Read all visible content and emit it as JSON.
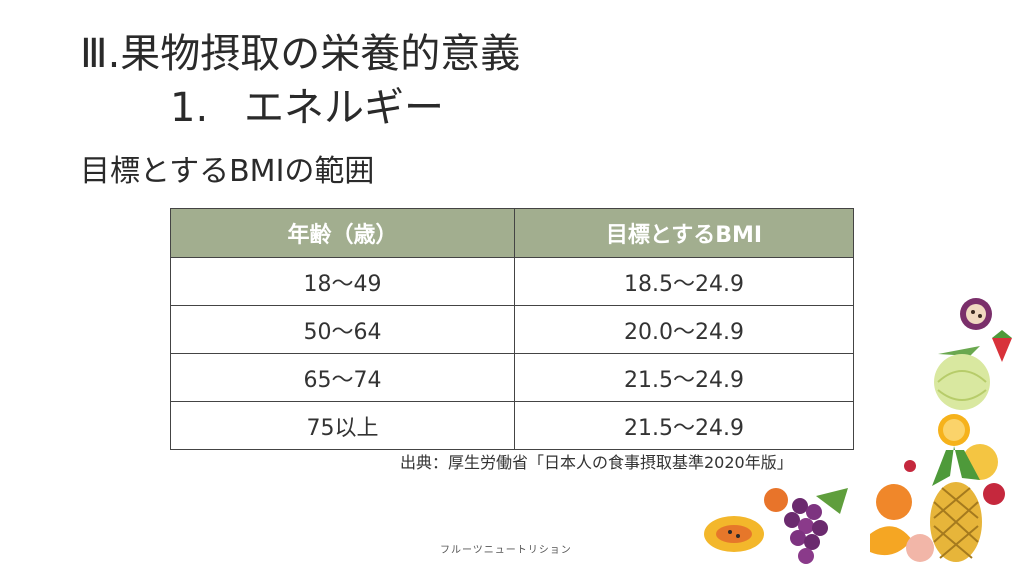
{
  "slide": {
    "title": "Ⅲ.果物摂取の栄養的意義",
    "subtitle_num": "1.",
    "subtitle_text": "エネルギー",
    "heading": "目標とするBMIの範囲"
  },
  "table": {
    "headers": [
      "年齢（歳）",
      "目標とするBMI"
    ],
    "rows": [
      [
        "18～49",
        "18.5～24.9"
      ],
      [
        "50～64",
        "20.0～24.9"
      ],
      [
        "65～74",
        "21.5～24.9"
      ],
      [
        "75以上",
        "21.5～24.9"
      ]
    ]
  },
  "source": "出典：厚生労働省「日本人の食事摂取基準2020年版」",
  "footer": "フルーツニュートリション",
  "colors": {
    "header_bg": "#a2ae8f",
    "text": "#2a2a2a"
  },
  "decor_icons": [
    "passion-fruit-icon",
    "strawberry-icon",
    "melon-icon",
    "orange-icon",
    "mango-icon",
    "pineapple-icon",
    "raspberry-icon",
    "grapes-icon",
    "papaya-icon",
    "persimmon-icon",
    "peach-icon"
  ]
}
